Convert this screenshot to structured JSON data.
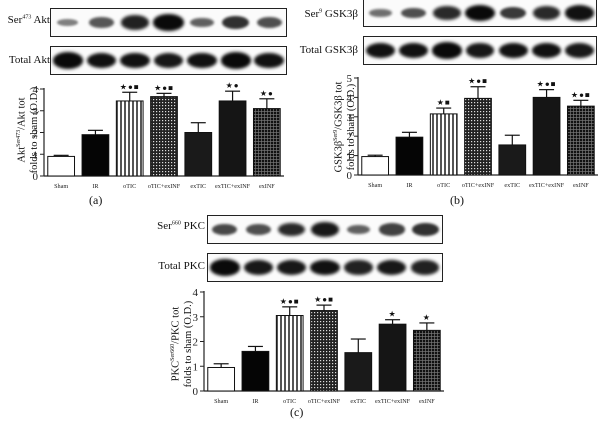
{
  "figure": {
    "panels": [
      {
        "id": "a",
        "caption": "(a)",
        "blots": [
          {
            "label_main": "Ser",
            "label_sup": "473",
            "label_rest": " Akt",
            "intensities": [
              0.25,
              0.5,
              0.85,
              1.0,
              0.45,
              0.75,
              0.55
            ]
          },
          {
            "label_main": "Total Akt",
            "label_sup": "",
            "label_rest": "",
            "intensities": [
              1,
              0.95,
              0.95,
              0.9,
              0.95,
              1,
              0.95
            ]
          }
        ],
        "ylabel_line1_pre": "Akt",
        "ylabel_line1_sup": "Ser473",
        "ylabel_line1_post": "/Akt tot",
        "ylabel_line2": "folds to sham (O.D.)"
      },
      {
        "id": "b",
        "caption": "(b)",
        "blots": [
          {
            "label_main": "Ser",
            "label_sup": "9",
            "label_rest": " GSK3β",
            "intensities": [
              0.35,
              0.55,
              0.8,
              1.0,
              0.7,
              0.8,
              0.95
            ]
          },
          {
            "label_main": "Total GSK3β",
            "label_sup": "",
            "label_rest": "",
            "intensities": [
              0.95,
              0.95,
              1,
              0.9,
              0.95,
              0.95,
              0.9
            ]
          }
        ],
        "ylabel_line1_pre": "GSK3β",
        "ylabel_line1_sup": "Ser9",
        "ylabel_line1_post": "/GSK3β tot",
        "ylabel_line2": "folds to sham (O.D.)"
      },
      {
        "id": "c",
        "caption": "(c)",
        "blots": [
          {
            "label_main": "Ser",
            "label_sup": "660",
            "label_rest": " PKC",
            "intensities": [
              0.6,
              0.55,
              0.8,
              0.9,
              0.45,
              0.65,
              0.75
            ]
          },
          {
            "label_main": "Total PKC",
            "label_sup": "",
            "label_rest": "",
            "intensities": [
              1,
              0.9,
              0.9,
              0.95,
              0.85,
              0.9,
              0.85
            ]
          }
        ],
        "ylabel_line1_pre": "PKC",
        "ylabel_line1_sup": "Ser660",
        "ylabel_line1_post": "/PKC tot",
        "ylabel_line2": "folds to sham (O.D.)"
      }
    ]
  },
  "chart_data": [
    {
      "type": "bar",
      "title": "(a)",
      "xlabel": "",
      "ylabel": "Akt Ser473/Akt tot folds to sham (O.D.)",
      "categories": [
        "Sham",
        "IR",
        "oTIC",
        "oTIC+exINF",
        "exTIC",
        "exTIC+exINF",
        "exINF"
      ],
      "values": [
        0.9,
        1.9,
        3.45,
        3.65,
        2.0,
        3.45,
        3.1
      ],
      "errors": [
        0.05,
        0.2,
        0.4,
        0.15,
        0.45,
        0.45,
        0.45
      ],
      "significance": [
        "",
        "",
        "★●■",
        "★●■",
        "",
        "★●",
        "★●"
      ],
      "ylim": [
        0,
        4
      ],
      "yticks": [
        0,
        1,
        2,
        3,
        4
      ],
      "grid": false
    },
    {
      "type": "bar",
      "title": "(b)",
      "xlabel": "",
      "ylabel": "GSK3β Ser9/GSK3β tot folds to sham (O.D.)",
      "categories": [
        "Sham",
        "IR",
        "oTIC",
        "oTIC+exINF",
        "exTIC",
        "exTIC+exINF",
        "exINF"
      ],
      "values": [
        0.95,
        1.95,
        3.15,
        3.95,
        1.55,
        4.0,
        3.55
      ],
      "errors": [
        0.07,
        0.25,
        0.3,
        0.6,
        0.5,
        0.4,
        0.3
      ],
      "significance": [
        "",
        "",
        "★■",
        "★●■",
        "",
        "★●■",
        "★●■"
      ],
      "ylim": [
        0,
        5
      ],
      "yticks": [
        0,
        1,
        2,
        3,
        4,
        5
      ],
      "grid": false
    },
    {
      "type": "bar",
      "title": "(c)",
      "xlabel": "",
      "ylabel": "PKC Ser660/PKC tot folds to sham (O.D.)",
      "categories": [
        "Sham",
        "IR",
        "oTIC",
        "oTIC+exINF",
        "exTIC",
        "exTIC+exINF",
        "exINF"
      ],
      "values": [
        0.95,
        1.6,
        3.05,
        3.25,
        1.55,
        2.7,
        2.45
      ],
      "errors": [
        0.15,
        0.2,
        0.35,
        0.22,
        0.55,
        0.18,
        0.3
      ],
      "significance": [
        "",
        "",
        "★●■",
        "★●■",
        "",
        "★",
        "★"
      ],
      "ylim": [
        0,
        4
      ],
      "yticks": [
        0,
        1,
        2,
        3,
        4
      ],
      "grid": false
    }
  ]
}
